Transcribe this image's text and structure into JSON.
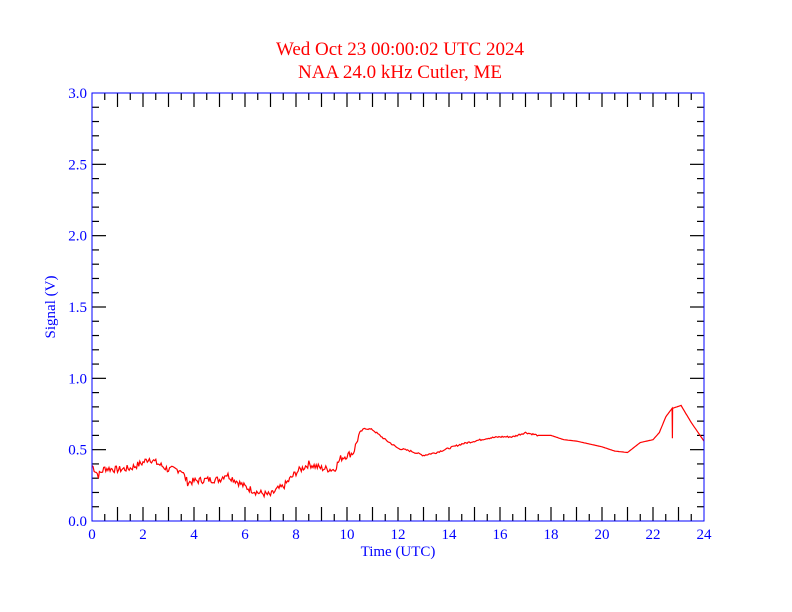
{
  "chart_data": {
    "type": "line",
    "title": "Wed Oct 23 00:00:02 UTC 2024",
    "subtitle": "NAA 24.0 kHz Cutler, ME",
    "xlabel": "Time (UTC)",
    "ylabel": "Signal (V)",
    "xlim": [
      0,
      24
    ],
    "ylim": [
      0,
      3.0
    ],
    "xticks": [
      "0",
      "2",
      "4",
      "6",
      "8",
      "10",
      "12",
      "14",
      "16",
      "18",
      "20",
      "22",
      "24"
    ],
    "yticks": [
      "0.0",
      "0.5",
      "1.0",
      "1.5",
      "2.0",
      "2.5",
      "3.0"
    ],
    "grid": false,
    "colors": {
      "line": "#ff0000",
      "axis": "#0000ff",
      "ticks": "#000000",
      "title": "#ff0000"
    },
    "series": [
      {
        "name": "Signal",
        "x": [
          0,
          0.25,
          0.5,
          1,
          1.5,
          2,
          2.25,
          2.5,
          3,
          3.5,
          3.75,
          4,
          4.5,
          5,
          5.25,
          5.5,
          6,
          6.5,
          7,
          7.25,
          7.5,
          8,
          8.5,
          9,
          9.5,
          9.75,
          10,
          10.25,
          10.5,
          10.7,
          11,
          11.5,
          12,
          12.5,
          13,
          13.5,
          14,
          14.5,
          15,
          15.5,
          16,
          16.5,
          17,
          17.5,
          18,
          18.5,
          19,
          19.5,
          20,
          20.5,
          21,
          21.5,
          22,
          22.25,
          22.5,
          22.75,
          22.76,
          22.77,
          23.1,
          23.5,
          24
        ],
        "y": [
          0.39,
          0.32,
          0.37,
          0.36,
          0.37,
          0.41,
          0.44,
          0.41,
          0.36,
          0.36,
          0.27,
          0.28,
          0.29,
          0.29,
          0.33,
          0.3,
          0.24,
          0.2,
          0.18,
          0.22,
          0.24,
          0.34,
          0.4,
          0.37,
          0.36,
          0.44,
          0.46,
          0.48,
          0.62,
          0.65,
          0.64,
          0.57,
          0.51,
          0.49,
          0.46,
          0.48,
          0.51,
          0.54,
          0.56,
          0.58,
          0.59,
          0.59,
          0.62,
          0.6,
          0.6,
          0.57,
          0.56,
          0.54,
          0.52,
          0.49,
          0.48,
          0.55,
          0.57,
          0.62,
          0.73,
          0.79,
          0.58,
          0.79,
          0.81,
          0.69,
          0.56
        ]
      }
    ]
  }
}
